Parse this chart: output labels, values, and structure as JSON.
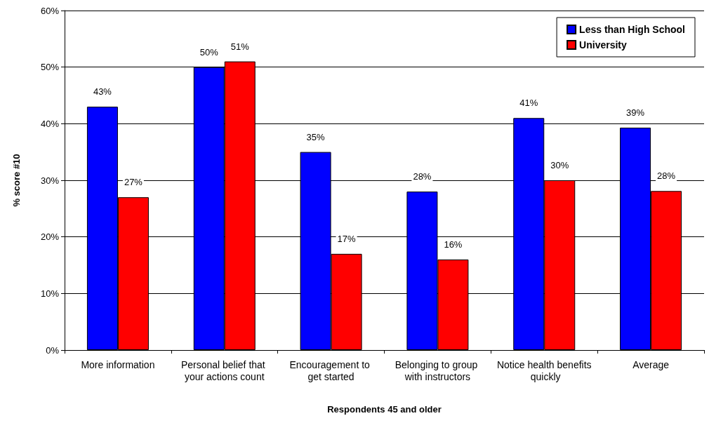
{
  "chart_data": {
    "type": "bar",
    "categories": [
      "More information",
      "Personal belief that your actions count",
      "Encouragement to get started",
      "Belonging to group with instructors",
      "Notice health benefits quickly",
      "Average"
    ],
    "series": [
      {
        "name": "Less than High School",
        "color": "#0000ff",
        "values": [
          43,
          50,
          35,
          28,
          41,
          39.3
        ],
        "value_labels": [
          "43%",
          "50%",
          "35%",
          "28%",
          "41%",
          "39%"
        ]
      },
      {
        "name": "University",
        "color": "#ff0000",
        "values": [
          27,
          51,
          17,
          16,
          30,
          28.1
        ],
        "value_labels": [
          "27%",
          "51%",
          "17%",
          "16%",
          "30%",
          "28%"
        ]
      }
    ],
    "xlabel": "Respondents 45 and older",
    "ylabel": "% score #10",
    "ylim": [
      0,
      60
    ],
    "yticks": [
      {
        "value": 0,
        "label": "0%"
      },
      {
        "value": 10,
        "label": "10%"
      },
      {
        "value": 20,
        "label": "20%"
      },
      {
        "value": 30,
        "label": "30%"
      },
      {
        "value": 40,
        "label": "40%"
      },
      {
        "value": 50,
        "label": "50%"
      },
      {
        "value": 60,
        "label": "60%"
      }
    ],
    "grid": "y",
    "legend": "top right"
  }
}
